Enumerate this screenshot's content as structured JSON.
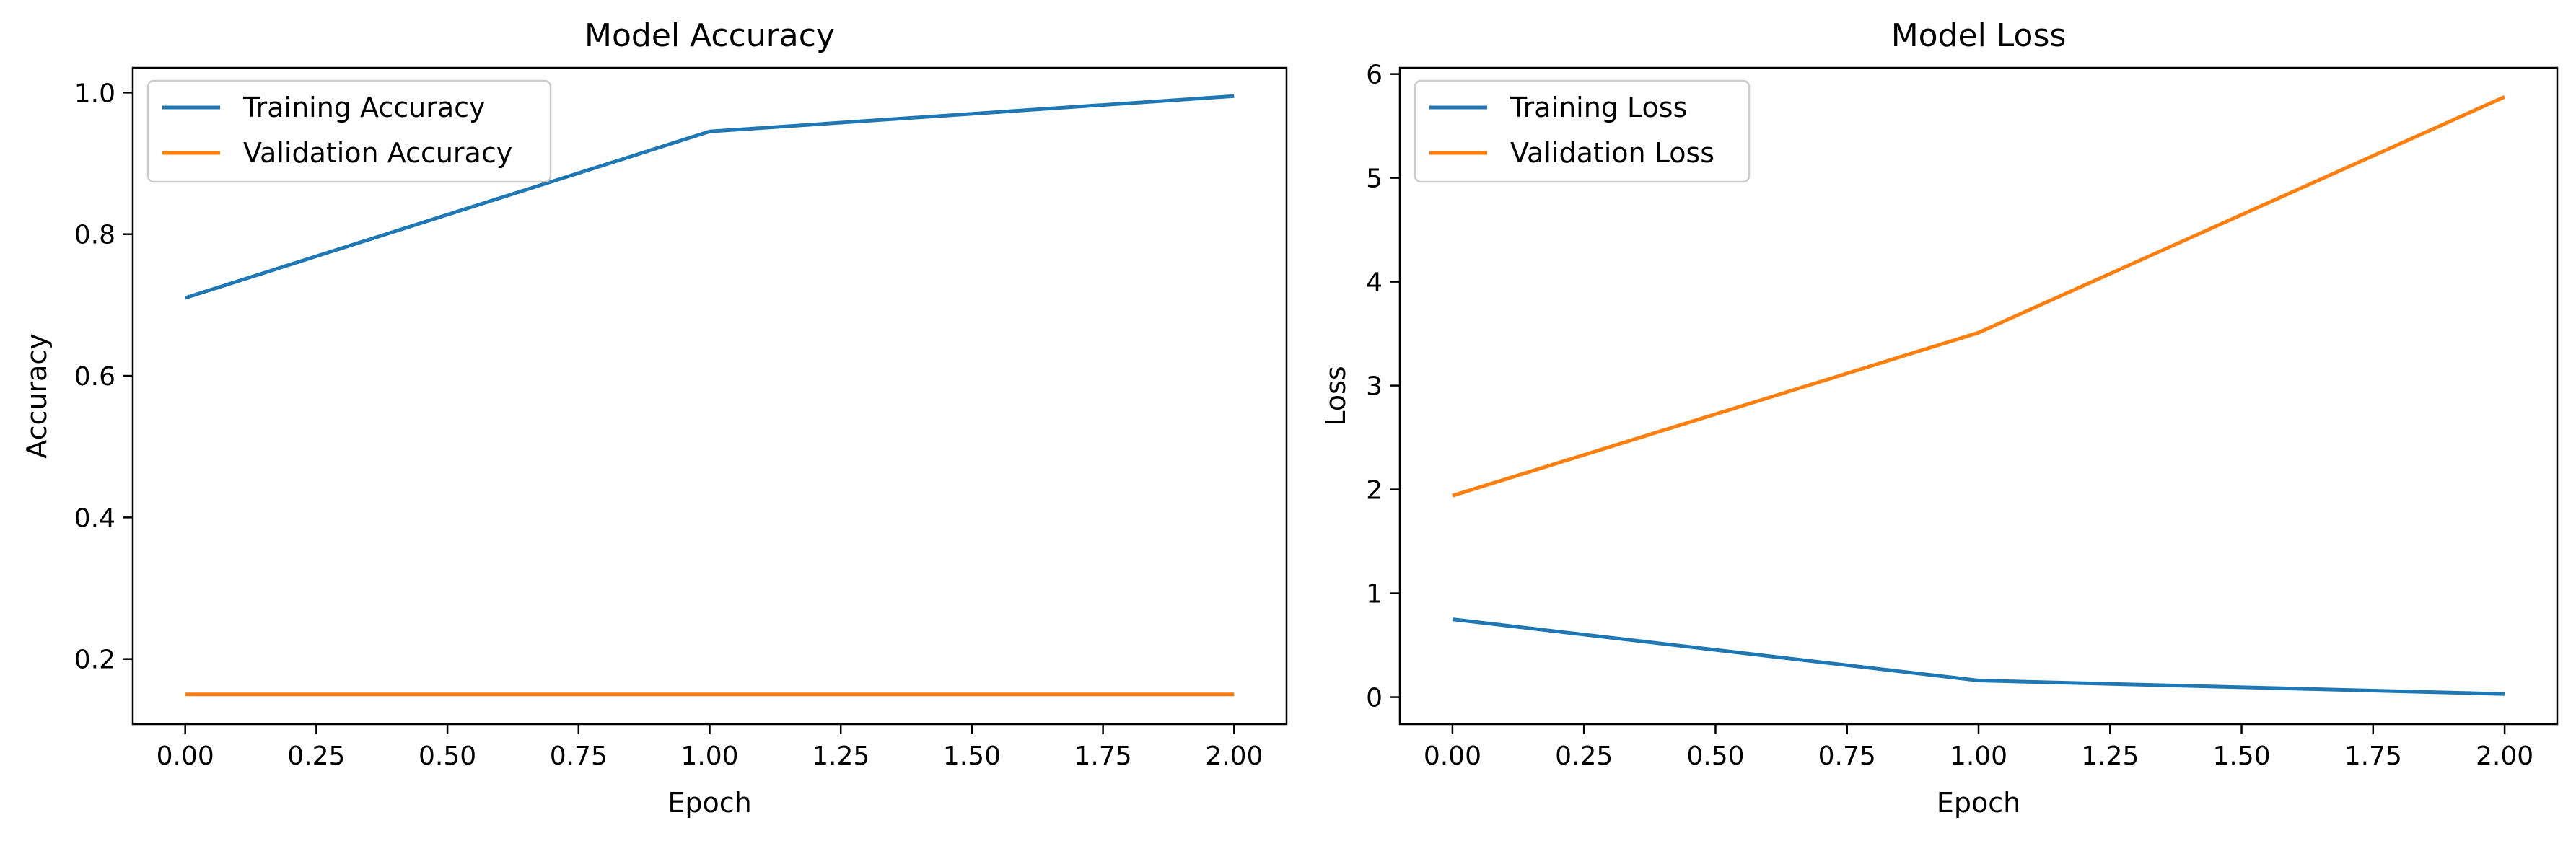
{
  "colors": {
    "training": "#1f77b4",
    "validation": "#ff7f0e"
  },
  "chart_data": [
    {
      "type": "line",
      "title": "Model Accuracy",
      "xlabel": "Epoch",
      "ylabel": "Accuracy",
      "x": [
        0,
        1,
        2
      ],
      "xlim": [
        -0.1,
        2.1
      ],
      "ylim": [
        0.108,
        1.035
      ],
      "xticks": [
        "0.00",
        "0.25",
        "0.50",
        "0.75",
        "1.00",
        "1.25",
        "1.50",
        "1.75",
        "2.00"
      ],
      "xtick_values": [
        0,
        0.25,
        0.5,
        0.75,
        1.0,
        1.25,
        1.5,
        1.75,
        2.0
      ],
      "yticks": [
        "0.2",
        "0.4",
        "0.6",
        "0.8",
        "1.0"
      ],
      "ytick_values": [
        0.2,
        0.4,
        0.6,
        0.8,
        1.0
      ],
      "grid": false,
      "legend": "upper-left",
      "series": [
        {
          "name": "Training Accuracy",
          "values": [
            0.71,
            0.945,
            0.995
          ]
        },
        {
          "name": "Validation Accuracy",
          "values": [
            0.15,
            0.15,
            0.15
          ]
        }
      ]
    },
    {
      "type": "line",
      "title": "Model Loss",
      "xlabel": "Epoch",
      "ylabel": "Loss",
      "x": [
        0,
        1,
        2
      ],
      "xlim": [
        -0.1,
        2.1
      ],
      "ylim": [
        -0.26,
        6.06
      ],
      "xticks": [
        "0.00",
        "0.25",
        "0.50",
        "0.75",
        "1.00",
        "1.25",
        "1.50",
        "1.75",
        "2.00"
      ],
      "xtick_values": [
        0,
        0.25,
        0.5,
        0.75,
        1.0,
        1.25,
        1.5,
        1.75,
        2.0
      ],
      "yticks": [
        "0",
        "1",
        "2",
        "3",
        "4",
        "5",
        "6"
      ],
      "ytick_values": [
        0,
        1,
        2,
        3,
        4,
        5,
        6
      ],
      "grid": false,
      "legend": "upper-left",
      "series": [
        {
          "name": "Training Loss",
          "values": [
            0.75,
            0.16,
            0.03
          ]
        },
        {
          "name": "Validation Loss",
          "values": [
            1.94,
            3.51,
            5.78
          ]
        }
      ]
    }
  ]
}
